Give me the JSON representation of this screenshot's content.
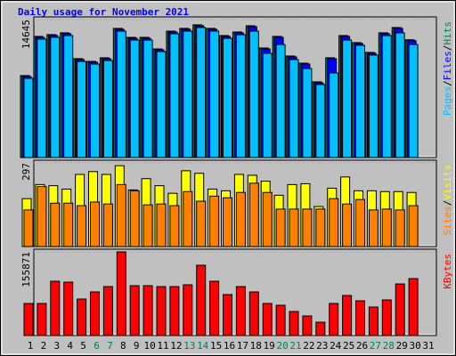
{
  "chart_data": [
    {
      "type": "bar",
      "title": "Daily usage for November 2021",
      "separator": "/",
      "ylim": [
        0,
        14645
      ],
      "yticks": [
        14645
      ],
      "series": [
        {
          "name": "Hits",
          "color": "#00805c",
          "values": [
            8700,
            12860,
            13050,
            13240,
            10500,
            10210,
            10590,
            13710,
            12760,
            12760,
            11530,
            13420,
            13710,
            14090,
            13710,
            12950,
            13330,
            13990,
            11630,
            12860,
            10780,
            10020,
            8040,
            10590,
            12950,
            12200,
            11160,
            13240,
            13800,
            12500,
            null
          ]
        },
        {
          "name": "Files",
          "color": "#0000ff",
          "values": [
            8600,
            12760,
            12950,
            13140,
            10400,
            10110,
            10490,
            13610,
            12660,
            12660,
            11430,
            13320,
            13610,
            13990,
            13610,
            12850,
            13230,
            13890,
            11530,
            12760,
            10680,
            9920,
            7940,
            10490,
            12850,
            12100,
            11060,
            13140,
            13700,
            12400,
            null
          ]
        },
        {
          "name": "Pages",
          "color": "#00c0ff",
          "values": [
            8410,
            12570,
            12760,
            12950,
            10200,
            9920,
            10300,
            13420,
            12470,
            12470,
            11250,
            13140,
            13420,
            13800,
            13420,
            12660,
            13040,
            13420,
            11060,
            12000,
            10400,
            9450,
            7750,
            8980,
            12470,
            11910,
            10870,
            12950,
            13230,
            12000,
            null
          ]
        }
      ]
    },
    {
      "type": "bar",
      "separator": "/",
      "ylim": [
        0,
        297
      ],
      "yticks": [
        297
      ],
      "series": [
        {
          "name": "Visits",
          "color": "#ffff00",
          "values": [
            170,
            220,
            216,
            204,
            256,
            266,
            256,
            287,
            201,
            241,
            216,
            189,
            269,
            260,
            204,
            198,
            256,
            253,
            232,
            182,
            220,
            223,
            142,
            207,
            247,
            198,
            198,
            195,
            195,
            192,
            null
          ]
        },
        {
          "name": "Sites",
          "color": "#ff8000",
          "values": [
            130,
            213,
            154,
            154,
            145,
            158,
            151,
            220,
            198,
            148,
            151,
            145,
            195,
            161,
            179,
            173,
            192,
            225,
            192,
            133,
            133,
            133,
            133,
            170,
            151,
            167,
            130,
            133,
            130,
            145,
            null
          ]
        }
      ]
    },
    {
      "type": "bar",
      "ylim": [
        0,
        155871
      ],
      "yticks": [
        155871
      ],
      "categories": [
        "1",
        "2",
        "3",
        "4",
        "5",
        "6",
        "7",
        "8",
        "9",
        "10",
        "11",
        "12",
        "13",
        "14",
        "15",
        "16",
        "17",
        "18",
        "19",
        "20",
        "21",
        "22",
        "23",
        "24",
        "25",
        "26",
        "27",
        "28",
        "29",
        "30",
        "31"
      ],
      "category_colors": [
        "#000000",
        "#000000",
        "#000000",
        "#000000",
        "#000000",
        "#00805c",
        "#00805c",
        "#000000",
        "#000000",
        "#000000",
        "#000000",
        "#000000",
        "#00805c",
        "#00805c",
        "#000000",
        "#000000",
        "#000000",
        "#000000",
        "#000000",
        "#00805c",
        "#00805c",
        "#000000",
        "#000000",
        "#000000",
        "#000000",
        "#000000",
        "#00805c",
        "#00805c",
        "#000000",
        "#000000",
        "#000000"
      ],
      "series": [
        {
          "name": "KBytes",
          "color": "#ff0000",
          "values": [
            59690,
            59690,
            101140,
            99480,
            67990,
            81240,
            91190,
            155871,
            92850,
            92850,
            91190,
            91190,
            94510,
            130980,
            101140,
            76270,
            91190,
            81240,
            59690,
            56370,
            44770,
            36480,
            24870,
            59690,
            74610,
            64660,
            53060,
            66320,
            96170,
            106110,
            null
          ]
        }
      ]
    }
  ]
}
